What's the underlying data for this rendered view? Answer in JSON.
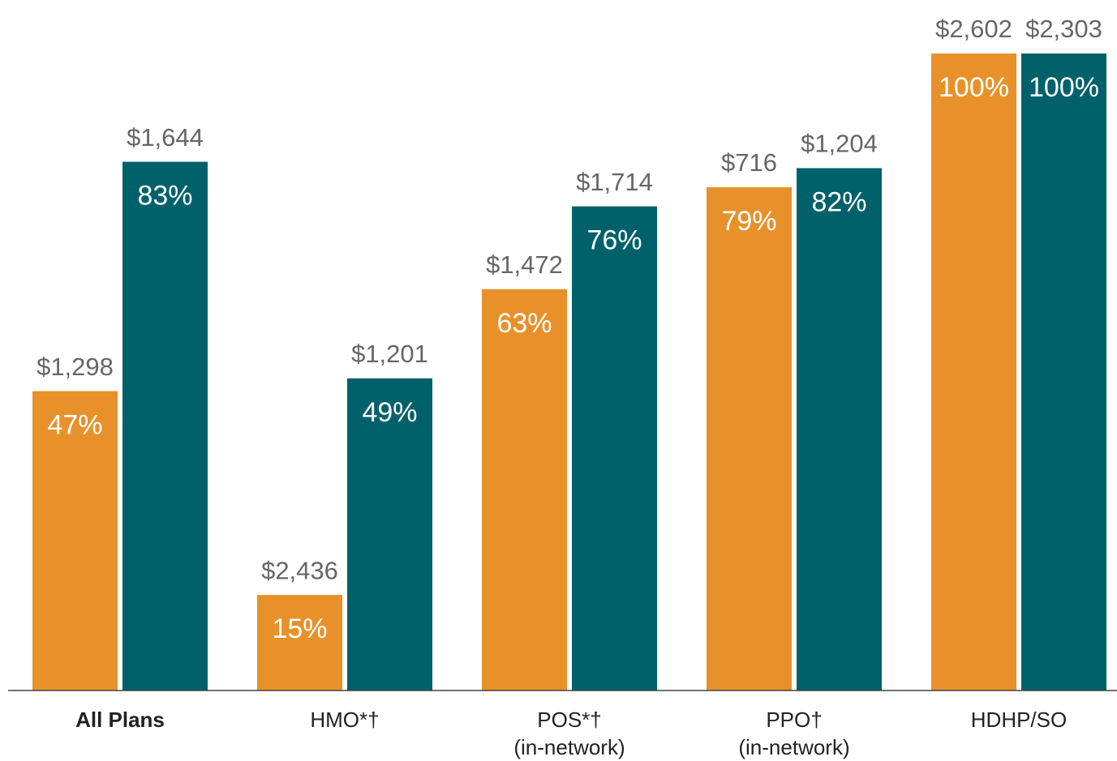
{
  "chart_data": {
    "type": "bar",
    "categories": [
      "All Plans",
      "HMO*†",
      "POS*†",
      "PPO†",
      "HDHP/SO"
    ],
    "category_notes": [
      null,
      null,
      "(in-network)",
      "(in-network)",
      null
    ],
    "series": [
      {
        "color": "#e8912a",
        "values": [
          47,
          15,
          63,
          79,
          100
        ],
        "value_labels": [
          "47%",
          "15%",
          "63%",
          "79%",
          "100%"
        ],
        "amount_labels": [
          "$1,298",
          "$2,436",
          "$1,472",
          "$716",
          "$2,602"
        ]
      },
      {
        "color": "#00616b",
        "values": [
          83,
          49,
          76,
          82,
          100
        ],
        "value_labels": [
          "83%",
          "49%",
          "76%",
          "82%",
          "100%"
        ],
        "amount_labels": [
          "$1,644",
          "$1,201",
          "$1,714",
          "$1,204",
          "$2,303"
        ]
      }
    ],
    "ylim": [
      0,
      100
    ]
  }
}
